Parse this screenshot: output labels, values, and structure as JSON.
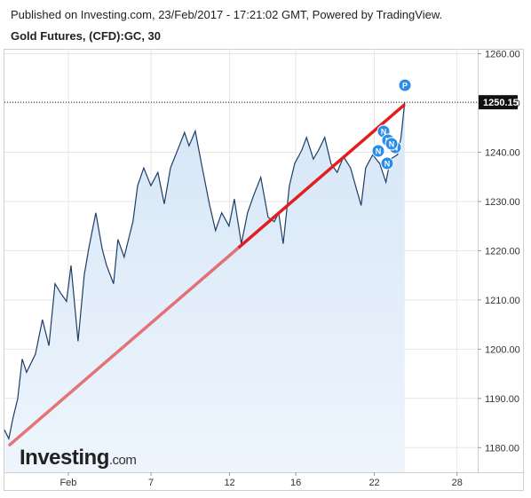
{
  "header": {
    "published": "Published on Investing.com, 23/Feb/2017 - 17:21:02 GMT, Powered by TradingView.",
    "symbol": "Gold Futures, (CFD):GC, 30"
  },
  "logo": {
    "brand": "Investing",
    "suffix": ".com"
  },
  "chart_data": {
    "type": "area",
    "x": [
      -3.09,
      -2.88,
      -2.66,
      -2.45,
      -2.23,
      -2.02,
      -1.59,
      -1.25,
      -0.94,
      -0.64,
      -0.39,
      -0.09,
      0.13,
      0.47,
      0.77,
      0.99,
      1.33,
      1.63,
      1.85,
      2.19,
      2.4,
      2.7,
      3.13,
      3.35,
      3.65,
      3.99,
      4.33,
      4.64,
      4.94,
      5.28,
      5.62,
      5.84,
      6.14,
      6.48,
      6.82,
      7.12,
      7.42,
      7.77,
      8.03,
      8.37,
      8.67,
      8.97,
      9.31,
      9.66,
      9.96,
      10.17,
      10.39,
      10.69,
      10.95,
      11.29,
      11.52,
      11.85,
      12.1,
      12.4,
      12.7,
      13.0,
      13.31,
      13.65,
      13.95,
      14.16,
      14.38,
      14.72,
      15.06,
      15.36,
      15.58,
      15.92,
      16.09,
      16.27
    ],
    "values": [
      1183.6,
      1181.8,
      1186.3,
      1189.9,
      1198.0,
      1195.3,
      1199.0,
      1206.0,
      1200.7,
      1213.3,
      1211.5,
      1209.7,
      1217.0,
      1201.6,
      1215.1,
      1220.5,
      1227.7,
      1220.5,
      1217.0,
      1213.3,
      1222.3,
      1218.7,
      1226.0,
      1233.2,
      1236.8,
      1233.2,
      1235.9,
      1229.5,
      1236.8,
      1240.4,
      1244.0,
      1241.3,
      1244.3,
      1236.8,
      1229.5,
      1224.1,
      1227.7,
      1225.0,
      1230.5,
      1221.4,
      1227.7,
      1231.3,
      1234.9,
      1226.8,
      1225.9,
      1227.7,
      1221.4,
      1233.2,
      1237.7,
      1240.4,
      1243.0,
      1238.6,
      1240.4,
      1243.0,
      1237.7,
      1235.9,
      1239.1,
      1236.8,
      1232.3,
      1229.2,
      1236.8,
      1239.5,
      1237.7,
      1233.9,
      1238.6,
      1239.5,
      1243.0,
      1250.15
    ],
    "color": "#1e3d66",
    "last_value": 1250.15,
    "last_value_label": "1250.15",
    "trendline": {
      "x": [
        -2.88,
        16.27
      ],
      "values": [
        1180.4,
        1249.7
      ],
      "color": "#e02020"
    },
    "news_markers": [
      "N",
      "N",
      "N",
      "N",
      "N",
      "N",
      "P"
    ],
    "xlim": [
      -3.09,
      19.8
    ],
    "xticks": [
      {
        "value": 0,
        "label": "Feb"
      },
      {
        "value": 4,
        "label": "7"
      },
      {
        "value": 7.8,
        "label": "12"
      },
      {
        "value": 11,
        "label": "16"
      },
      {
        "value": 14.8,
        "label": "22"
      },
      {
        "value": 18.8,
        "label": "28"
      }
    ],
    "ylim": [
      1175,
      1261
    ],
    "yticks": [
      {
        "value": 1180,
        "label": "1180.00"
      },
      {
        "value": 1190,
        "label": "1190.00"
      },
      {
        "value": 1200,
        "label": "1200.00"
      },
      {
        "value": 1210,
        "label": "1210.00"
      },
      {
        "value": 1220,
        "label": "1220.00"
      },
      {
        "value": 1230,
        "label": "1230.00"
      },
      {
        "value": 1240,
        "label": "1240.00"
      },
      {
        "value": 1250,
        "label": "1250.00"
      },
      {
        "value": 1260,
        "label": "1260.00"
      }
    ],
    "grid": true
  }
}
